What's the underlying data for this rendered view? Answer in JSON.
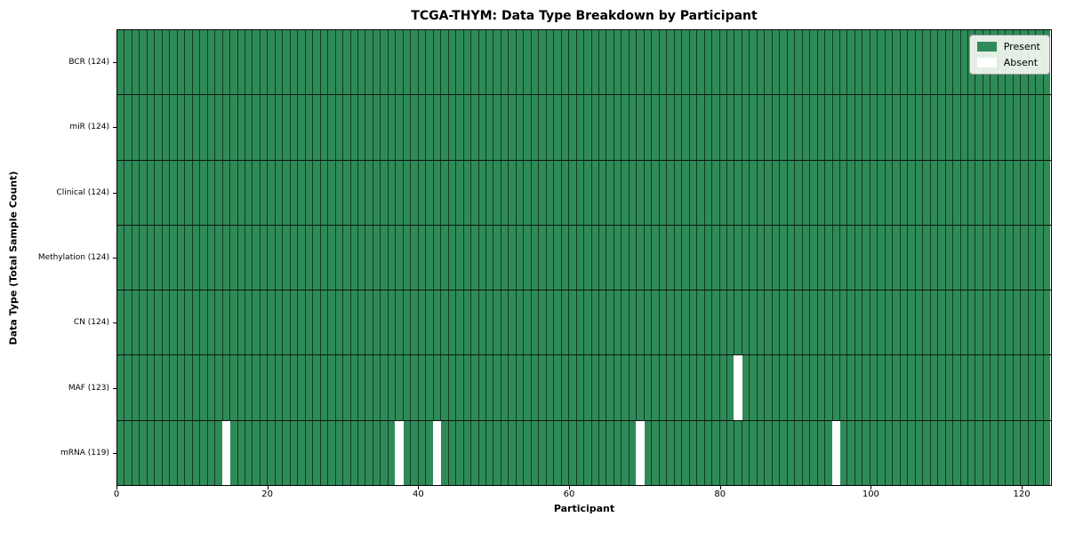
{
  "chart_data": {
    "type": "heatmap",
    "title": "TCGA-THYM: Data Type Breakdown by Participant",
    "xlabel": "Participant",
    "ylabel": "Data Type (Total Sample Count)",
    "n_participants": 124,
    "x_ticks": [
      0,
      20,
      40,
      60,
      80,
      100,
      120
    ],
    "x_range": [
      0,
      124
    ],
    "rows": [
      {
        "label": "BCR (124)",
        "data_type": "BCR",
        "total": 124,
        "absent_indices": []
      },
      {
        "label": "miR (124)",
        "data_type": "miR",
        "total": 124,
        "absent_indices": []
      },
      {
        "label": "Clinical (124)",
        "data_type": "Clinical",
        "total": 124,
        "absent_indices": []
      },
      {
        "label": "Methylation (124)",
        "data_type": "Methylation",
        "total": 124,
        "absent_indices": []
      },
      {
        "label": "CN (124)",
        "data_type": "CN",
        "total": 124,
        "absent_indices": []
      },
      {
        "label": "MAF (123)",
        "data_type": "MAF",
        "total": 123,
        "absent_indices": [
          82
        ]
      },
      {
        "label": "mRNA (119)",
        "data_type": "mRNA",
        "total": 119,
        "absent_indices": [
          14,
          37,
          42,
          69,
          95
        ]
      }
    ],
    "legend": [
      {
        "label": "Present",
        "color": "#2e8b57"
      },
      {
        "label": "Absent",
        "color": "#ffffff"
      }
    ],
    "colors": {
      "present": "#2e8b57",
      "absent": "#ffffff",
      "cell_edge": "rgba(5,25,15,0.70)",
      "row_separator": "#101010",
      "plot_border": "#000000"
    },
    "legend_position": "upper right",
    "grid": "cell-borders"
  }
}
